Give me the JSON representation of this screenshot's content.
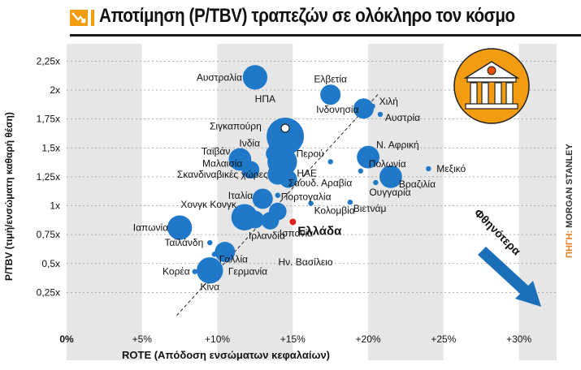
{
  "title": "Αποτίμηση (P/TBV) τραπεζών σε ολόκληρο τον κόσμο",
  "source_label": "ΠΗΓΗ:",
  "source_value": "MORGAN STANLEY",
  "cheaper_label": "Φθηνότερα",
  "icon": "bank-building-icon",
  "colors": {
    "accent": "#f39c12",
    "bubble": "#1f78c8",
    "highlight": "#e02020",
    "arrow": "#1a6fb8",
    "band": "#e6e6e6"
  },
  "chart_data": {
    "type": "scatter",
    "title": "Αποτίμηση (P/TBV) τραπεζών σε ολόκληρο τον κόσμο",
    "xlabel": "ROTE (Απόδοση ενσώματων κεφαλαίων)",
    "ylabel": "P/TBV (τιμή/ενσώματη καθαρή θέση)",
    "xlim": [
      0,
      32.5
    ],
    "ylim": [
      0,
      2.4
    ],
    "x_ticks": [
      "0%",
      "+5%",
      "+10%",
      "+15%",
      "+20%",
      "+25%",
      "+30%"
    ],
    "x_tick_values": [
      0,
      5,
      10,
      15,
      20,
      25,
      30
    ],
    "y_ticks": [
      "0,25x",
      "0,5x",
      "0,75x",
      "1x",
      "1,25x",
      "1,5x",
      "1,75x",
      "2x",
      "2,25x"
    ],
    "y_tick_values": [
      0.25,
      0.5,
      0.75,
      1,
      1.25,
      1.5,
      1.75,
      2,
      2.25
    ],
    "grid": true,
    "trendline": {
      "x": [
        7.3,
        20.7
      ],
      "y": [
        0.05,
        1.97
      ],
      "style": "dashed"
    },
    "points": [
      {
        "label": "Αυστραλία",
        "x": 12.5,
        "y": 2.11,
        "size": 5
      },
      {
        "label": "Ελβετία",
        "x": 17.5,
        "y": 1.96,
        "size": 3
      },
      {
        "label": "Χιλή",
        "x": 20.3,
        "y": 1.86,
        "size": 1
      },
      {
        "label": "Ινδονησία",
        "x": 19.7,
        "y": 1.84,
        "size": 3
      },
      {
        "label": "Αυστρία",
        "x": 20.8,
        "y": 1.79,
        "size": 1
      },
      {
        "label": "ΗΠΑ",
        "x": 14.5,
        "y": 1.6,
        "size": 14
      },
      {
        "label": "Σιγκαπούρη",
        "x": 14.0,
        "y": 1.52,
        "size": 2
      },
      {
        "label": "Ινδία",
        "x": 13.8,
        "y": 1.45,
        "size": 2
      },
      {
        "label": "Ταϊβάν",
        "x": 11.5,
        "y": 1.4,
        "size": 4
      },
      {
        "label": "Ν. Αφρική",
        "x": 20.0,
        "y": 1.42,
        "size": 4
      },
      {
        "label": "Περού",
        "x": 17.5,
        "y": 1.38,
        "size": 1
      },
      {
        "label": "Μεξικό",
        "x": 24.0,
        "y": 1.32,
        "size": 1
      },
      {
        "label": "ΗΑΕ",
        "x": 14.3,
        "y": 1.38,
        "size": 8
      },
      {
        "label": "Μαλαισία",
        "x": 12.2,
        "y": 1.31,
        "size": 2
      },
      {
        "label": "Πολωνία",
        "x": 19.5,
        "y": 1.3,
        "size": 1
      },
      {
        "label": "Σκανδιναβικές χώρες",
        "x": 14.0,
        "y": 1.27,
        "size": 3
      },
      {
        "label": "Σαουδ. Αραβία",
        "x": 14.7,
        "y": 1.23,
        "size": 2
      },
      {
        "label": "Βραζιλία",
        "x": 21.5,
        "y": 1.25,
        "size": 4
      },
      {
        "label": "Ουγγαρία",
        "x": 20.5,
        "y": 1.2,
        "size": 1
      },
      {
        "label": "Ιταλία",
        "x": 13.0,
        "y": 1.06,
        "size": 3
      },
      {
        "label": "Πορτογαλία",
        "x": 14.0,
        "y": 1.09,
        "size": 1
      },
      {
        "label": "Κολομβία",
        "x": 16.2,
        "y": 1.02,
        "size": 1
      },
      {
        "label": "Βιετνάμ",
        "x": 18.8,
        "y": 1.03,
        "size": 1
      },
      {
        "label": "Χονγκ Κονγκ",
        "x": 11.8,
        "y": 0.9,
        "size": 6
      },
      {
        "label": "Ιαπωνία",
        "x": 7.5,
        "y": 0.81,
        "size": 5
      },
      {
        "label": "Ελλάδα",
        "x": 15.0,
        "y": 0.86,
        "size": 1,
        "highlight": true
      },
      {
        "label": "Ισπανία",
        "x": 14.0,
        "y": 0.95,
        "size": 2
      },
      {
        "label": "Ιρλανδία",
        "x": 12.5,
        "y": 0.88,
        "size": 2
      },
      {
        "label": "Ην. Βασίλειο",
        "x": 13.5,
        "y": 0.87,
        "size": 2
      },
      {
        "label": "Ταϊλάνδη",
        "x": 9.5,
        "y": 0.68,
        "size": 1
      },
      {
        "label": "Γαλλία",
        "x": 9.8,
        "y": 0.58,
        "size": 1
      },
      {
        "label": "Γερμανία",
        "x": 10.5,
        "y": 0.6,
        "size": 3
      },
      {
        "label": "Κορέα",
        "x": 8.5,
        "y": 0.43,
        "size": 1
      },
      {
        "label": "Κίνα",
        "x": 9.5,
        "y": 0.44,
        "size": 6
      }
    ]
  }
}
